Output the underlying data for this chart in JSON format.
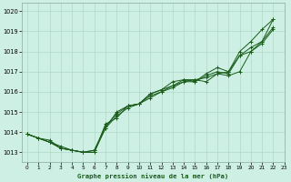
{
  "title": "Graphe pression niveau de la mer (hPa)",
  "bg_color": "#cef0e4",
  "grid_color": "#b0d8c8",
  "line_color": "#1a5c1a",
  "xlim": [
    -0.5,
    23
  ],
  "ylim": [
    1012.5,
    1020.4
  ],
  "yticks": [
    1013,
    1014,
    1015,
    1016,
    1017,
    1018,
    1019,
    1020
  ],
  "xticks": [
    0,
    1,
    2,
    3,
    4,
    5,
    6,
    7,
    8,
    9,
    10,
    11,
    12,
    13,
    14,
    15,
    16,
    17,
    18,
    19,
    20,
    21,
    22,
    23
  ],
  "series": [
    {
      "x": [
        0,
        1,
        2,
        3,
        4,
        5,
        6,
        7,
        8,
        9,
        10,
        11,
        12,
        13,
        14,
        15,
        16,
        17,
        18,
        19,
        20,
        21,
        22
      ],
      "y": [
        1013.9,
        1013.7,
        1013.6,
        1013.2,
        1013.1,
        1013.0,
        1013.0,
        1014.2,
        1015.0,
        1015.3,
        1015.4,
        1015.9,
        1016.1,
        1016.5,
        1016.6,
        1016.5,
        1016.9,
        1017.2,
        1017.0,
        1017.8,
        1018.0,
        1018.5,
        1019.2
      ]
    },
    {
      "x": [
        0,
        1,
        2,
        3,
        4,
        5,
        6,
        7,
        8,
        9,
        10,
        11,
        12,
        13,
        14,
        15,
        16,
        17,
        18,
        19,
        20,
        21,
        22
      ],
      "y": [
        1013.9,
        1013.7,
        1013.5,
        1013.2,
        1013.1,
        1013.0,
        1013.1,
        1014.2,
        1014.8,
        1015.2,
        1015.4,
        1015.8,
        1016.0,
        1016.3,
        1016.5,
        1016.6,
        1016.5,
        1016.9,
        1016.8,
        1017.0,
        1018.0,
        1018.4,
        1019.1
      ]
    },
    {
      "x": [
        0,
        1,
        2,
        3,
        4,
        5,
        6,
        7,
        8,
        9,
        10,
        11,
        12,
        13,
        14,
        15,
        16,
        17,
        18,
        19,
        20,
        21,
        22
      ],
      "y": [
        1013.9,
        1013.7,
        1013.5,
        1013.2,
        1013.1,
        1013.0,
        1013.1,
        1014.3,
        1014.9,
        1015.3,
        1015.4,
        1015.7,
        1016.0,
        1016.2,
        1016.5,
        1016.5,
        1016.8,
        1017.0,
        1016.9,
        1017.8,
        1018.2,
        1018.5,
        1019.6
      ]
    },
    {
      "x": [
        0,
        1,
        2,
        3,
        4,
        5,
        6,
        7,
        8,
        9,
        10,
        11,
        12,
        13,
        14,
        15,
        16,
        17,
        18,
        19,
        20,
        21,
        22
      ],
      "y": [
        1013.9,
        1013.7,
        1013.5,
        1013.3,
        1013.1,
        1013.0,
        1013.0,
        1014.4,
        1014.7,
        1015.3,
        1015.4,
        1015.9,
        1016.1,
        1016.3,
        1016.6,
        1016.6,
        1016.7,
        1016.9,
        1017.0,
        1018.0,
        1018.5,
        1019.1,
        1019.6
      ]
    }
  ]
}
